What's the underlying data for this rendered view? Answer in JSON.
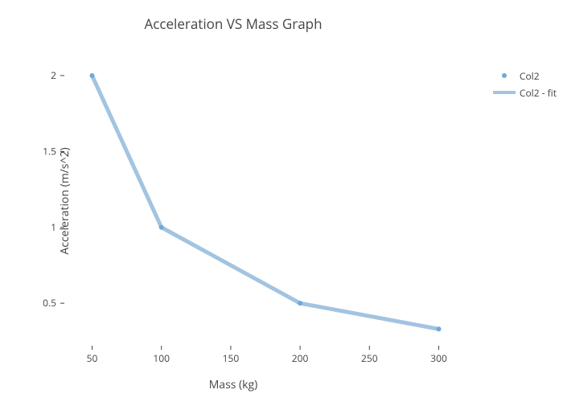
{
  "chart": {
    "type": "line",
    "title": "Acceleration VS Mass Graph",
    "title_fontsize": 17,
    "title_color": "#444444",
    "xlabel": "Mass (kg)",
    "ylabel": "Acceleration (m/s^2)",
    "label_fontsize": 14,
    "label_color": "#444444",
    "tick_fontsize": 12,
    "tick_color": "#444444",
    "xlim": [
      30,
      320
    ],
    "ylim": [
      0.22,
      2.18
    ],
    "xticks": [
      50,
      100,
      150,
      200,
      250,
      300
    ],
    "yticks": [
      0.5,
      1,
      1.5,
      2
    ],
    "background_color": "#ffffff",
    "plot_background_color": "#ffffff",
    "series": [
      {
        "name": "Col2",
        "type": "scatter",
        "x": [
          50,
          100,
          200,
          300
        ],
        "y": [
          2.0,
          1.0,
          0.5,
          0.33
        ],
        "marker_color": "#6fa8dc",
        "marker_size": 6,
        "marker_shape": "circle"
      },
      {
        "name": "Col2 - fit",
        "type": "line",
        "x": [
          50,
          100,
          200,
          300
        ],
        "y": [
          2.0,
          1.0,
          0.5,
          0.33
        ],
        "line_color": "#a2c4e0",
        "line_width": 5
      }
    ],
    "legend": {
      "position": "right",
      "fontsize": 12,
      "items": [
        {
          "label": "Col2",
          "type": "dot",
          "color": "#6fa8dc"
        },
        {
          "label": "Col2 - fit",
          "type": "line",
          "color": "#a2c4e0"
        }
      ]
    }
  }
}
